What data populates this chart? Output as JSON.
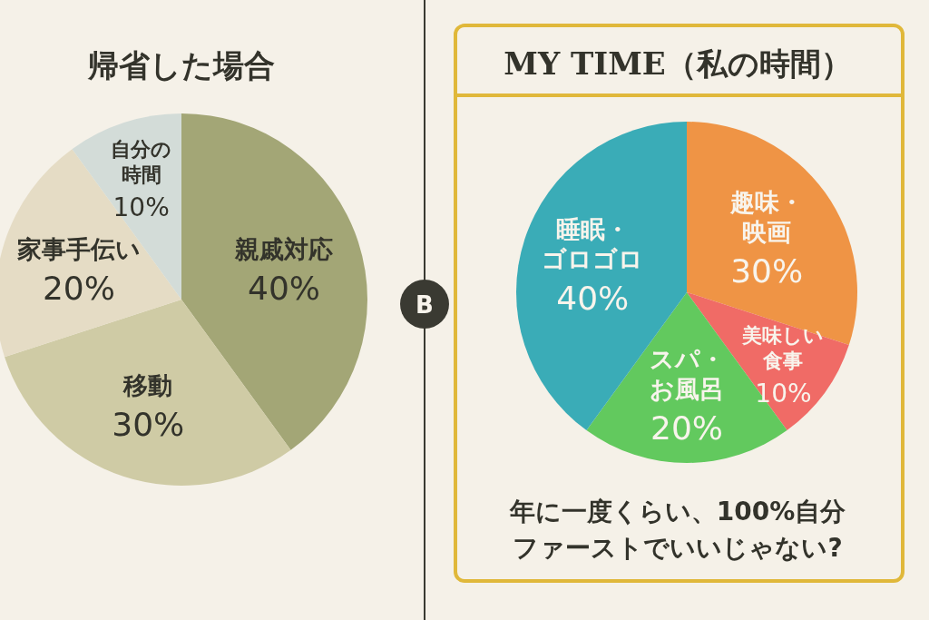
{
  "chart_data": [
    {
      "type": "pie",
      "title": "帰省した場合",
      "categories": [
        "親戚対応",
        "移動",
        "家事手伝い",
        "自分の時間"
      ],
      "values": [
        40,
        30,
        20,
        10
      ],
      "value_labels": [
        "40%",
        "30%",
        "20%",
        "10%"
      ],
      "colors": [
        "#a3a676",
        "#cfcba5",
        "#e5dcc5",
        "#d3dcd8"
      ]
    },
    {
      "type": "pie",
      "title": "MY TIME（私の時間）",
      "categories": [
        "趣味・映画",
        "美味しい食事",
        "スパ・お風呂",
        "睡眠・ゴロゴロ"
      ],
      "values": [
        30,
        10,
        20,
        40
      ],
      "value_labels": [
        "30%",
        "10%",
        "20%",
        "40%"
      ],
      "colors": [
        "#ef9445",
        "#f06b66",
        "#62c95e",
        "#3aacb7"
      ],
      "annotations": [
        "B",
        "年に一度くらい、100%自分ファーストでいいじゃない?"
      ]
    }
  ]
}
